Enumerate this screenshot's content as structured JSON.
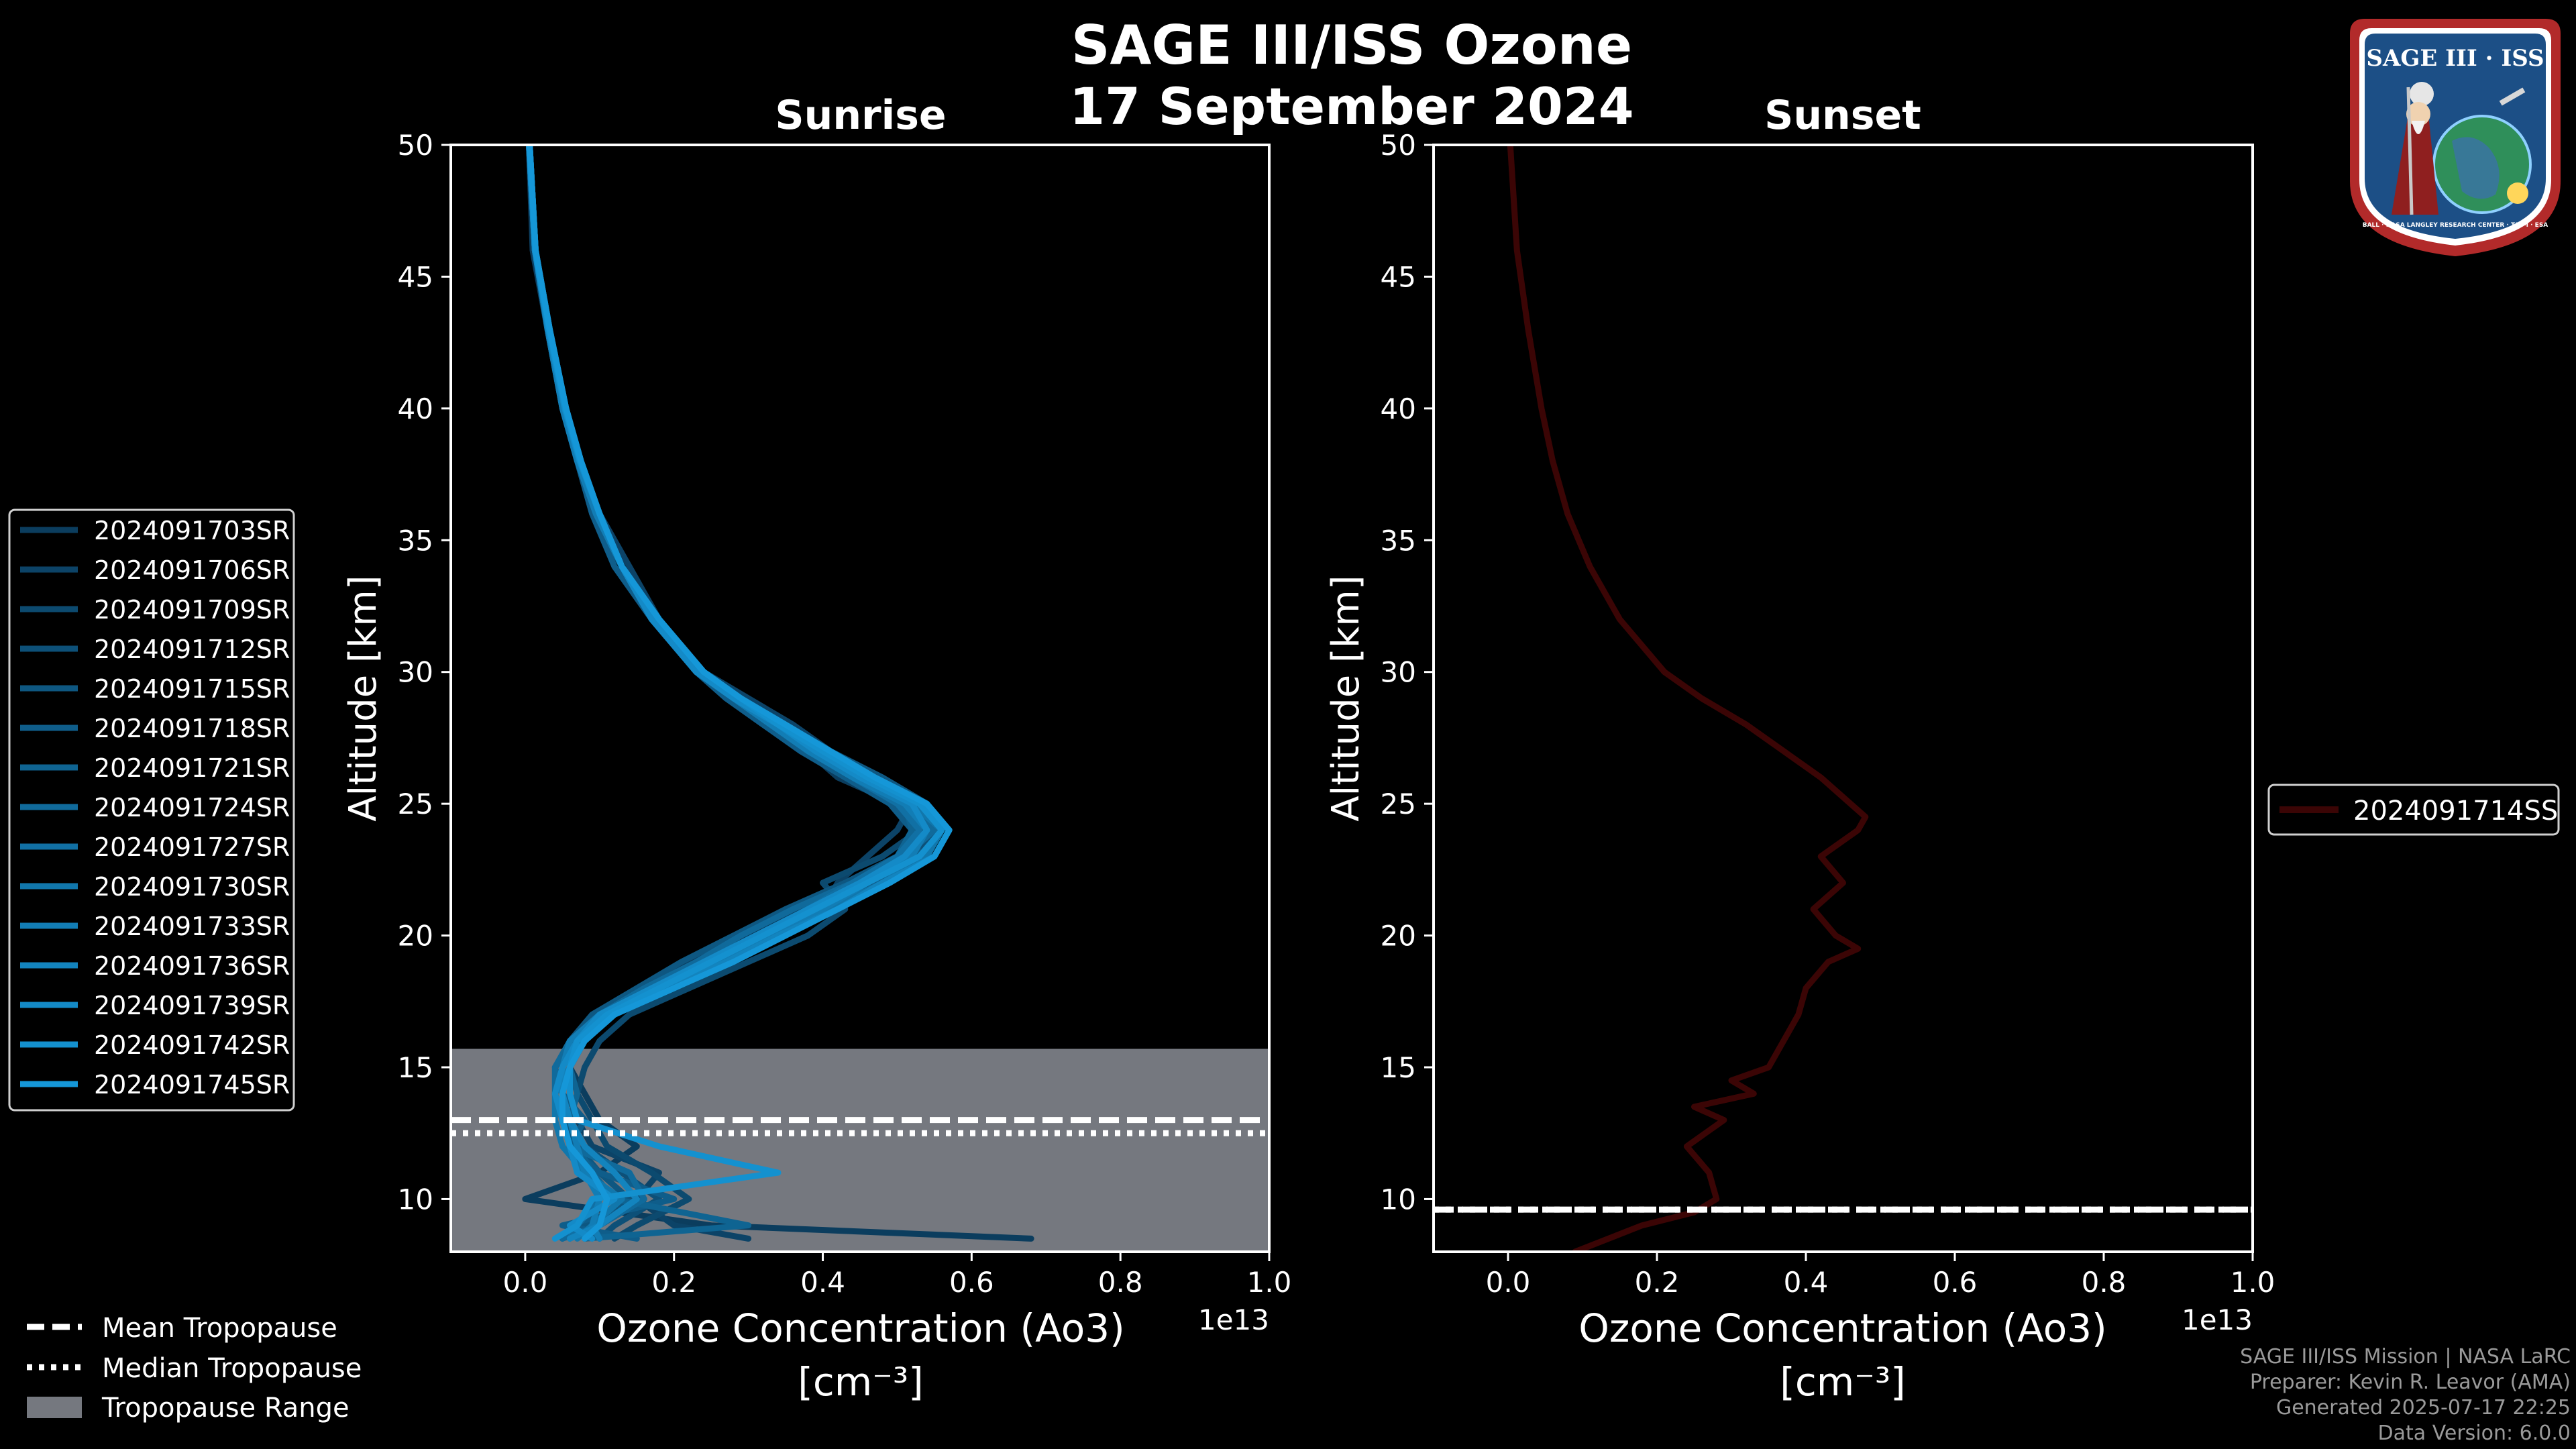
{
  "title": {
    "line1": "SAGE III/ISS Ozone",
    "line2": "17 September 2024"
  },
  "colors": {
    "background": "#000000",
    "sunrise_dark": "#0b3d5e",
    "sunrise_light": "#1597d8",
    "sunset": "#3b0505",
    "tropopause_range": "#75787f"
  },
  "logo": {
    "top_text": "SAGE III · ISS",
    "ring_text": "BALL · NASA LANGLEY RESEARCH CENTER · TAS-I · ESA"
  },
  "chart_data": [
    {
      "type": "line",
      "panel": "sunrise",
      "title": "Sunrise",
      "xlabel": "Ozone Concentration (Ao3)",
      "xunit": "[cm⁻³]",
      "ylabel": "Altitude [km]",
      "x_scale_label": "1e13",
      "xlim": [
        -0.1,
        1.0
      ],
      "ylim": [
        8,
        50
      ],
      "xticks": [
        0.0,
        0.2,
        0.4,
        0.6,
        0.8,
        1.0
      ],
      "xtick_labels": [
        "0.0",
        "0.2",
        "0.4",
        "0.6",
        "0.8",
        "1.0"
      ],
      "yticks": [
        10,
        15,
        20,
        25,
        30,
        35,
        40,
        45,
        50
      ],
      "ytick_labels": [
        "10",
        "15",
        "20",
        "25",
        "30",
        "35",
        "40",
        "45",
        "50"
      ],
      "tropopause": {
        "range": [
          8,
          15.7
        ],
        "mean": 13.0,
        "median": 12.5
      },
      "altitudes": [
        8.5,
        9,
        10,
        11,
        12,
        13,
        14,
        15,
        16,
        17,
        18,
        19,
        20,
        21,
        22,
        23,
        24,
        25,
        26,
        27,
        28,
        29,
        30,
        32,
        34,
        36,
        38,
        40,
        43,
        46,
        50
      ],
      "series": [
        {
          "name": "2024091703SR",
          "values": [
            0.68,
            0.25,
            0.0,
            0.1,
            0.15,
            0.1,
            0.08,
            0.06,
            0.07,
            0.1,
            0.16,
            0.22,
            0.3,
            0.37,
            0.43,
            0.5,
            0.54,
            0.5,
            0.42,
            0.38,
            0.32,
            0.27,
            0.23,
            0.17,
            0.13,
            0.09,
            0.07,
            0.05,
            0.03,
            0.01,
            0.005
          ]
        },
        {
          "name": "2024091706SR",
          "values": [
            0.3,
            0.2,
            0.15,
            0.18,
            0.09,
            0.07,
            0.06,
            0.06,
            0.08,
            0.12,
            0.18,
            0.25,
            0.33,
            0.4,
            0.42,
            0.46,
            0.5,
            0.52,
            0.47,
            0.41,
            0.36,
            0.3,
            0.24,
            0.18,
            0.14,
            0.1,
            0.075,
            0.055,
            0.032,
            0.014,
            0.006
          ]
        },
        {
          "name": "2024091709SR",
          "values": [
            0.12,
            0.15,
            0.22,
            0.17,
            0.11,
            0.09,
            0.07,
            0.08,
            0.1,
            0.14,
            0.22,
            0.3,
            0.38,
            0.43,
            0.4,
            0.48,
            0.53,
            0.5,
            0.44,
            0.38,
            0.33,
            0.28,
            0.23,
            0.17,
            0.13,
            0.095,
            0.07,
            0.05,
            0.03,
            0.013,
            0.005
          ]
        },
        {
          "name": "2024091712SR",
          "values": [
            0.1,
            0.12,
            0.18,
            0.13,
            0.08,
            0.06,
            0.05,
            0.05,
            0.06,
            0.1,
            0.17,
            0.24,
            0.31,
            0.38,
            0.45,
            0.52,
            0.56,
            0.53,
            0.46,
            0.4,
            0.34,
            0.28,
            0.23,
            0.17,
            0.13,
            0.1,
            0.075,
            0.055,
            0.033,
            0.014,
            0.006
          ]
        },
        {
          "name": "2024091715SR",
          "values": [
            0.05,
            0.08,
            0.14,
            0.1,
            0.07,
            0.05,
            0.04,
            0.05,
            0.06,
            0.09,
            0.15,
            0.21,
            0.28,
            0.35,
            0.43,
            0.5,
            0.55,
            0.54,
            0.48,
            0.41,
            0.35,
            0.29,
            0.24,
            0.18,
            0.13,
            0.1,
            0.074,
            0.054,
            0.032,
            0.014,
            0.006
          ]
        },
        {
          "name": "2024091718SR",
          "values": [
            0.15,
            0.05,
            0.2,
            0.1,
            0.06,
            0.08,
            0.05,
            0.04,
            0.07,
            0.11,
            0.18,
            0.26,
            0.32,
            0.41,
            0.47,
            0.53,
            0.52,
            0.49,
            0.43,
            0.37,
            0.32,
            0.27,
            0.23,
            0.17,
            0.12,
            0.09,
            0.07,
            0.05,
            0.03,
            0.013,
            0.005
          ]
        },
        {
          "name": "2024091721SR",
          "values": [
            0.08,
            0.3,
            0.12,
            0.09,
            0.07,
            0.06,
            0.07,
            0.06,
            0.08,
            0.12,
            0.2,
            0.27,
            0.34,
            0.4,
            0.46,
            0.5,
            0.52,
            0.51,
            0.45,
            0.39,
            0.34,
            0.28,
            0.23,
            0.17,
            0.13,
            0.1,
            0.073,
            0.053,
            0.031,
            0.013,
            0.005
          ]
        },
        {
          "name": "2024091724SR",
          "values": [
            0.05,
            0.1,
            0.16,
            0.14,
            0.06,
            0.05,
            0.04,
            0.04,
            0.06,
            0.1,
            0.16,
            0.23,
            0.29,
            0.36,
            0.44,
            0.51,
            0.55,
            0.52,
            0.46,
            0.4,
            0.35,
            0.29,
            0.24,
            0.18,
            0.13,
            0.1,
            0.075,
            0.055,
            0.033,
            0.014,
            0.006
          ]
        },
        {
          "name": "2024091727SR",
          "values": [
            0.06,
            0.07,
            0.1,
            0.09,
            0.06,
            0.05,
            0.05,
            0.05,
            0.07,
            0.11,
            0.18,
            0.24,
            0.31,
            0.38,
            0.44,
            0.5,
            0.53,
            0.5,
            0.44,
            0.38,
            0.33,
            0.28,
            0.23,
            0.17,
            0.13,
            0.095,
            0.07,
            0.05,
            0.03,
            0.013,
            0.005
          ]
        },
        {
          "name": "2024091730SR",
          "values": [
            0.07,
            0.09,
            0.13,
            0.08,
            0.05,
            0.04,
            0.04,
            0.06,
            0.08,
            0.12,
            0.19,
            0.26,
            0.33,
            0.41,
            0.48,
            0.54,
            0.56,
            0.52,
            0.45,
            0.39,
            0.33,
            0.28,
            0.23,
            0.17,
            0.13,
            0.1,
            0.074,
            0.054,
            0.032,
            0.014,
            0.006
          ]
        },
        {
          "name": "2024091733SR",
          "values": [
            0.1,
            0.09,
            0.1,
            0.08,
            0.07,
            0.06,
            0.05,
            0.05,
            0.06,
            0.1,
            0.17,
            0.25,
            0.33,
            0.4,
            0.46,
            0.52,
            0.54,
            0.51,
            0.44,
            0.38,
            0.33,
            0.28,
            0.23,
            0.17,
            0.13,
            0.095,
            0.07,
            0.05,
            0.03,
            0.013,
            0.005
          ]
        },
        {
          "name": "2024091736SR",
          "values": [
            0.06,
            0.1,
            0.15,
            0.12,
            0.08,
            0.06,
            0.05,
            0.05,
            0.07,
            0.11,
            0.19,
            0.27,
            0.34,
            0.42,
            0.48,
            0.55,
            0.57,
            0.53,
            0.46,
            0.4,
            0.34,
            0.29,
            0.24,
            0.18,
            0.13,
            0.1,
            0.075,
            0.055,
            0.033,
            0.014,
            0.006
          ]
        },
        {
          "name": "2024091739SR",
          "values": [
            0.09,
            0.06,
            0.12,
            0.07,
            0.06,
            0.05,
            0.04,
            0.05,
            0.07,
            0.1,
            0.17,
            0.24,
            0.31,
            0.38,
            0.45,
            0.51,
            0.54,
            0.52,
            0.45,
            0.39,
            0.34,
            0.28,
            0.23,
            0.17,
            0.13,
            0.1,
            0.073,
            0.053,
            0.031,
            0.013,
            0.005
          ]
        },
        {
          "name": "2024091742SR",
          "values": [
            0.04,
            0.07,
            0.09,
            0.34,
            0.18,
            0.07,
            0.06,
            0.06,
            0.07,
            0.11,
            0.18,
            0.25,
            0.32,
            0.39,
            0.46,
            0.53,
            0.56,
            0.53,
            0.46,
            0.4,
            0.34,
            0.29,
            0.24,
            0.18,
            0.13,
            0.1,
            0.074,
            0.054,
            0.032,
            0.014,
            0.006
          ]
        },
        {
          "name": "2024091745SR",
          "values": [
            0.08,
            0.1,
            0.11,
            0.09,
            0.06,
            0.05,
            0.05,
            0.06,
            0.08,
            0.12,
            0.2,
            0.28,
            0.35,
            0.42,
            0.49,
            0.55,
            0.57,
            0.54,
            0.47,
            0.41,
            0.35,
            0.29,
            0.24,
            0.18,
            0.13,
            0.1,
            0.075,
            0.055,
            0.033,
            0.014,
            0.006
          ]
        }
      ]
    },
    {
      "type": "line",
      "panel": "sunset",
      "title": "Sunset",
      "xlabel": "Ozone Concentration (Ao3)",
      "xunit": "[cm⁻³]",
      "ylabel": "Altitude [km]",
      "x_scale_label": "1e13",
      "xlim": [
        -0.1,
        1.0
      ],
      "ylim": [
        8,
        50
      ],
      "xticks": [
        0.0,
        0.2,
        0.4,
        0.6,
        0.8,
        1.0
      ],
      "xtick_labels": [
        "0.0",
        "0.2",
        "0.4",
        "0.6",
        "0.8",
        "1.0"
      ],
      "yticks": [
        10,
        15,
        20,
        25,
        30,
        35,
        40,
        45,
        50
      ],
      "ytick_labels": [
        "10",
        "15",
        "20",
        "25",
        "30",
        "35",
        "40",
        "45",
        "50"
      ],
      "tropopause": {
        "mean": 9.6,
        "median": 9.6
      },
      "series": [
        {
          "name": "2024091714SS",
          "altitudes": [
            8.0,
            9,
            9.5,
            10,
            11,
            12,
            13,
            13.5,
            14,
            14.5,
            15,
            16,
            17,
            18,
            19,
            19.5,
            20,
            21,
            22,
            23,
            24,
            24.5,
            25,
            26,
            27,
            28,
            29,
            30,
            32,
            34,
            36,
            38,
            40,
            43,
            46,
            50
          ],
          "values": [
            0.09,
            0.18,
            0.25,
            0.28,
            0.27,
            0.24,
            0.29,
            0.25,
            0.33,
            0.3,
            0.35,
            0.37,
            0.39,
            0.4,
            0.43,
            0.47,
            0.44,
            0.41,
            0.45,
            0.42,
            0.47,
            0.48,
            0.46,
            0.42,
            0.37,
            0.32,
            0.26,
            0.21,
            0.15,
            0.11,
            0.08,
            0.06,
            0.045,
            0.027,
            0.012,
            0.003
          ]
        }
      ]
    }
  ],
  "legend_sunrise": {
    "entries": [
      "2024091703SR",
      "2024091706SR",
      "2024091709SR",
      "2024091712SR",
      "2024091715SR",
      "2024091718SR",
      "2024091721SR",
      "2024091724SR",
      "2024091727SR",
      "2024091730SR",
      "2024091733SR",
      "2024091736SR",
      "2024091739SR",
      "2024091742SR",
      "2024091745SR"
    ]
  },
  "legend_sunset": {
    "entries": [
      "2024091714SS"
    ]
  },
  "legend_tropopause": {
    "mean": "Mean Tropopause",
    "median": "Median Tropopause",
    "range": "Tropopause Range"
  },
  "footer": {
    "line1": "SAGE III/ISS Mission | NASA LaRC",
    "line2": "Preparer: Kevin R. Leavor (AMA)",
    "line3": "Generated 2025-07-17 22:25",
    "line4": "Data Version: 6.0.0"
  }
}
